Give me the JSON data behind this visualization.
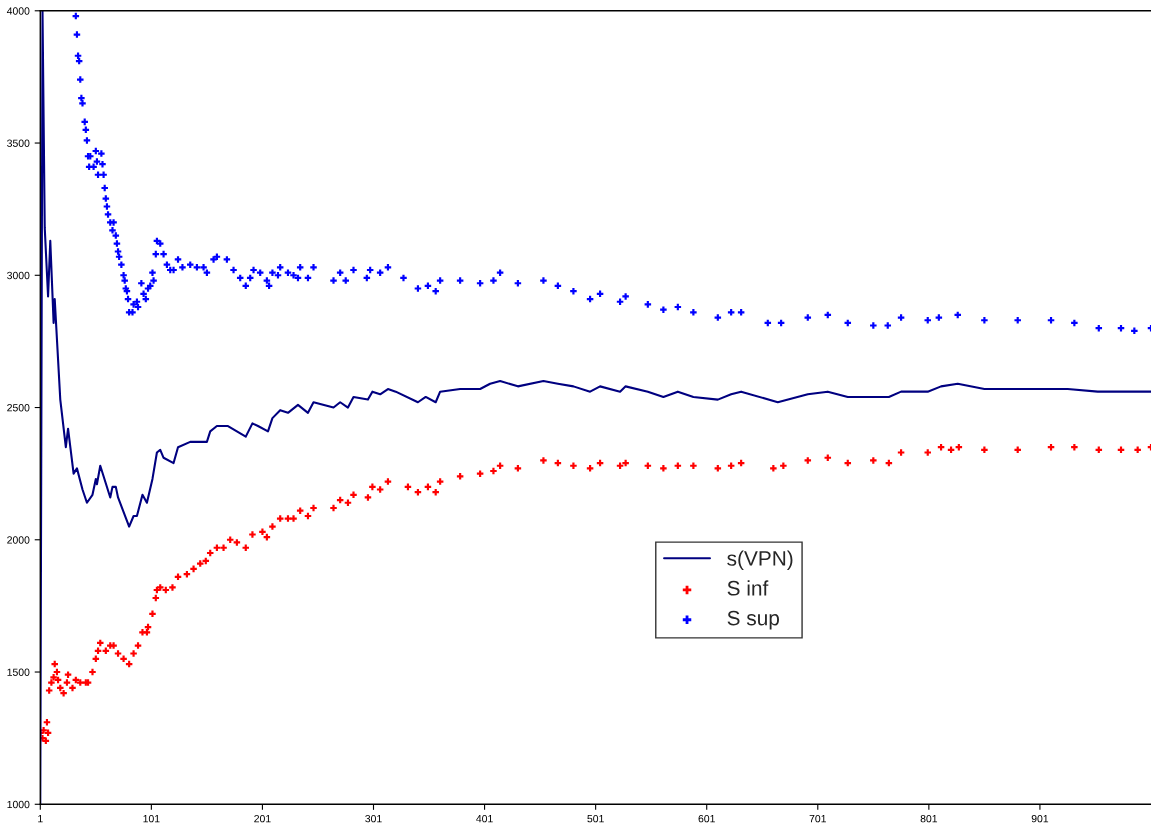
{
  "chart_data": {
    "type": "line",
    "xlim": [
      1,
      1001
    ],
    "xticks": [
      1,
      101,
      201,
      301,
      401,
      501,
      601,
      701,
      801,
      901
    ],
    "ylim": [
      1000,
      4000
    ],
    "yticks": [
      1000,
      1500,
      2000,
      2500,
      3000,
      3500,
      4000
    ],
    "grid": false,
    "legend": "bottom",
    "series": [
      {
        "name": "s(VPN)",
        "color": "#000080",
        "marker": "none",
        "line_style": "solid",
        "x": [
          1,
          3,
          5,
          8,
          10,
          13,
          14,
          19,
          24,
          26,
          31,
          34,
          39,
          43,
          48,
          51,
          52,
          55,
          64,
          66,
          69,
          71,
          81,
          85,
          88,
          93,
          97,
          102,
          106,
          109,
          112,
          121,
          125,
          136,
          142,
          151,
          154,
          160,
          170,
          178,
          186,
          192,
          197,
          206,
          210,
          217,
          224,
          233,
          242,
          247,
          265,
          271,
          278,
          283,
          296,
          300,
          307,
          314,
          321,
          341,
          348,
          357,
          361,
          379,
          397,
          406,
          415,
          431,
          454,
          467,
          481,
          496,
          505,
          523,
          528,
          548,
          562,
          575,
          589,
          611,
          623,
          632,
          665,
          692,
          710,
          728,
          751,
          765,
          776,
          800,
          812,
          827,
          851,
          881,
          911,
          926,
          953,
          971,
          989,
          1001
        ],
        "values": [
          1000,
          4000,
          3180,
          2920,
          3130,
          2820,
          2910,
          2530,
          2350,
          2420,
          2250,
          2270,
          2190,
          2140,
          2170,
          2230,
          2210,
          2280,
          2160,
          2200,
          2200,
          2160,
          2050,
          2090,
          2090,
          2170,
          2140,
          2230,
          2330,
          2340,
          2310,
          2290,
          2350,
          2370,
          2370,
          2370,
          2410,
          2430,
          2430,
          2410,
          2390,
          2440,
          2430,
          2410,
          2460,
          2490,
          2480,
          2510,
          2480,
          2520,
          2500,
          2520,
          2500,
          2540,
          2530,
          2560,
          2550,
          2570,
          2560,
          2520,
          2540,
          2520,
          2560,
          2570,
          2570,
          2590,
          2600,
          2580,
          2600,
          2590,
          2580,
          2560,
          2580,
          2560,
          2580,
          2560,
          2540,
          2560,
          2540,
          2530,
          2550,
          2560,
          2520,
          2550,
          2560,
          2540,
          2540,
          2540,
          2560,
          2560,
          2580,
          2590,
          2570,
          2570,
          2570,
          2570,
          2560,
          2560,
          2560,
          2560
        ]
      },
      {
        "name": "S inf",
        "type": "scatter",
        "color": "#ff0000",
        "marker": "cross",
        "x": [
          1,
          3,
          4,
          6,
          7,
          8,
          9,
          11,
          13,
          14,
          16,
          17,
          19,
          22,
          25,
          26,
          30,
          33,
          37,
          42,
          44,
          48,
          51,
          53,
          55,
          60,
          64,
          67,
          71,
          76,
          81,
          85,
          89,
          93,
          97,
          98,
          102,
          105,
          106,
          109,
          114,
          120,
          125,
          133,
          139,
          145,
          150,
          154,
          160,
          166,
          172,
          178,
          186,
          192,
          201,
          205,
          210,
          217,
          224,
          229,
          235,
          242,
          247,
          265,
          271,
          278,
          283,
          296,
          300,
          307,
          314,
          332,
          341,
          350,
          357,
          361,
          379,
          397,
          409,
          415,
          431,
          454,
          467,
          481,
          496,
          505,
          523,
          528,
          548,
          562,
          575,
          589,
          611,
          623,
          632,
          661,
          670,
          692,
          710,
          728,
          751,
          765,
          776,
          800,
          812,
          821,
          823,
          828,
          851,
          881,
          911,
          932,
          943,
          954,
          974,
          989,
          1001
        ],
        "values": [
          1270,
          1250,
          1280,
          1240,
          1310,
          1270,
          1430,
          1460,
          1480,
          1530,
          1500,
          1470,
          1440,
          1420,
          1460,
          1490,
          1440,
          1470,
          1460,
          1460,
          1460,
          1500,
          1550,
          1580,
          1610,
          1580,
          1600,
          1600,
          1570,
          1550,
          1530,
          1570,
          1600,
          1650,
          1650,
          1670,
          1720,
          1780,
          1810,
          1820,
          1810,
          1820,
          1860,
          1870,
          1890,
          1910,
          1920,
          1950,
          1970,
          1970,
          2000,
          1990,
          1970,
          2020,
          2030,
          2010,
          2050,
          2080,
          2080,
          2080,
          2110,
          2090,
          2120,
          2120,
          2150,
          2140,
          2170,
          2160,
          2200,
          2190,
          2220,
          2200,
          2180,
          2200,
          2180,
          2220,
          2240,
          2250,
          2260,
          2280,
          2270,
          2300,
          2290,
          2280,
          2270,
          2290,
          2280,
          2290,
          2280,
          2270,
          2280,
          2280,
          2270,
          2280,
          2290,
          2270,
          2280,
          2300,
          2310,
          2290,
          2300,
          2290,
          2330,
          2330,
          2350,
          2340,
          null,
          2350,
          2340,
          2340,
          2350,
          2350,
          null,
          2340,
          2340,
          2340,
          2350
        ]
      },
      {
        "name": "S sup",
        "type": "scatter",
        "color": "#0000ff",
        "marker": "cross",
        "x": [
          33,
          34,
          35,
          36,
          37,
          38,
          39,
          41,
          42,
          43,
          44,
          45,
          46,
          49,
          51,
          52,
          53,
          56,
          57,
          58,
          59,
          60,
          61,
          62,
          64,
          66,
          67,
          69,
          70,
          71,
          72,
          74,
          76,
          77,
          78,
          79,
          80,
          81,
          84,
          85,
          88,
          89,
          92,
          94,
          96,
          98,
          100,
          102,
          103,
          105,
          106,
          109,
          112,
          115,
          118,
          121,
          125,
          129,
          136,
          142,
          148,
          151,
          157,
          160,
          169,
          175,
          181,
          186,
          190,
          193,
          199,
          205,
          207,
          210,
          215,
          217,
          224,
          229,
          233,
          235,
          242,
          247,
          265,
          271,
          276,
          283,
          295,
          298,
          307,
          314,
          328,
          341,
          350,
          357,
          361,
          379,
          397,
          409,
          415,
          431,
          454,
          467,
          481,
          496,
          505,
          523,
          528,
          548,
          562,
          575,
          589,
          611,
          623,
          632,
          656,
          668,
          692,
          710,
          728,
          751,
          764,
          776,
          800,
          810,
          827,
          851,
          881,
          911,
          932,
          943,
          954,
          974,
          986,
          1001
        ],
        "values": [
          3980,
          3910,
          3830,
          3810,
          3740,
          3670,
          3650,
          3580,
          3550,
          3510,
          3450,
          3410,
          3450,
          3410,
          3470,
          3430,
          3380,
          3460,
          3420,
          3380,
          3330,
          3290,
          3260,
          3230,
          3200,
          3170,
          3200,
          3150,
          3120,
          3090,
          3070,
          3040,
          3000,
          2980,
          2950,
          2940,
          2910,
          2860,
          2860,
          2890,
          2900,
          2880,
          2970,
          2930,
          2910,
          2950,
          2960,
          3010,
          2980,
          3080,
          3130,
          3120,
          3080,
          3040,
          3020,
          3020,
          3060,
          3030,
          3040,
          3030,
          3030,
          3010,
          3060,
          3070,
          3060,
          3020,
          2990,
          2960,
          2990,
          3020,
          3010,
          2980,
          2960,
          3010,
          3000,
          3030,
          3010,
          3000,
          2990,
          3030,
          2990,
          3030,
          2980,
          3010,
          2980,
          3020,
          2990,
          3020,
          3010,
          3030,
          2990,
          2950,
          2960,
          2940,
          2980,
          2980,
          2970,
          2980,
          3010,
          2970,
          2980,
          2960,
          2940,
          2910,
          2930,
          2900,
          2920,
          2890,
          2870,
          2880,
          2860,
          2840,
          2860,
          2860,
          2820,
          2820,
          2840,
          2850,
          2820,
          2810,
          2810,
          2840,
          2830,
          2840,
          2850,
          2830,
          2830,
          2830,
          2820,
          null,
          2800,
          2800,
          2790,
          2800
        ]
      }
    ]
  }
}
